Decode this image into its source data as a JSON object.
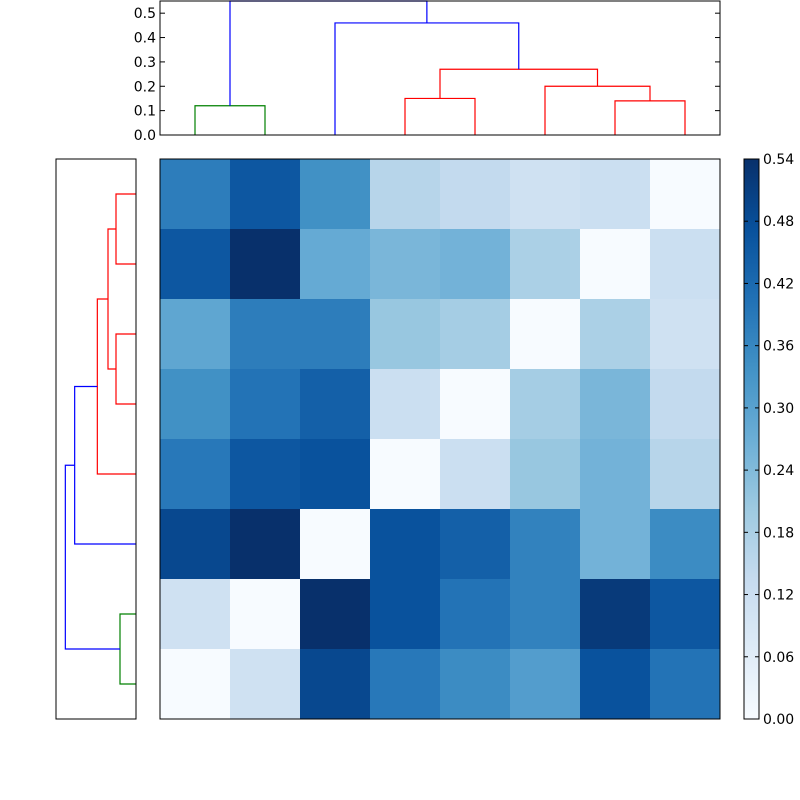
{
  "chart_data": {
    "type": "heatmap",
    "title": "",
    "colormap": "Blues",
    "colors": {
      "low": "#f7fbff",
      "high": "#08306b",
      "cluster_green": "#008000",
      "cluster_red": "#ff0000",
      "cluster_blue": "#0000ff"
    },
    "matrix": [
      [
        0.38,
        0.46,
        0.34,
        0.16,
        0.14,
        0.11,
        0.12,
        0.0
      ],
      [
        0.46,
        0.54,
        0.28,
        0.25,
        0.26,
        0.18,
        0.0,
        0.12
      ],
      [
        0.29,
        0.38,
        0.38,
        0.21,
        0.19,
        0.0,
        0.18,
        0.11
      ],
      [
        0.34,
        0.4,
        0.44,
        0.12,
        0.0,
        0.19,
        0.25,
        0.14
      ],
      [
        0.39,
        0.46,
        0.47,
        0.0,
        0.12,
        0.21,
        0.26,
        0.16
      ],
      [
        0.49,
        0.54,
        0.0,
        0.47,
        0.44,
        0.37,
        0.26,
        0.35
      ],
      [
        0.11,
        0.0,
        0.54,
        0.47,
        0.4,
        0.37,
        0.52,
        0.46
      ],
      [
        0.0,
        0.11,
        0.49,
        0.39,
        0.35,
        0.31,
        0.47,
        0.4
      ]
    ],
    "colorbar": {
      "vmin": 0.0,
      "vmax": 0.54,
      "ticks": [
        "0.00",
        "0.06",
        "0.12",
        "0.18",
        "0.24",
        "0.30",
        "0.36",
        "0.42",
        "0.48",
        "0.54"
      ]
    },
    "top_dendrogram": {
      "ylim": [
        0,
        0.55
      ],
      "ticks": [
        "0.0",
        "0.1",
        "0.2",
        "0.3",
        "0.4",
        "0.5"
      ],
      "links": [
        {
          "left": 0.5,
          "right": 1.5,
          "lh": 0,
          "rh": 0,
          "height": 0.12,
          "color": "green"
        },
        {
          "left": 3.5,
          "right": 4.5,
          "lh": 0,
          "rh": 0,
          "height": 0.15,
          "color": "red"
        },
        {
          "left": 6.5,
          "right": 7.5,
          "lh": 0,
          "rh": 0,
          "height": 0.14,
          "color": "red"
        },
        {
          "left": 5.5,
          "right": 7.0,
          "lh": 0,
          "rh": 0.14,
          "height": 0.2,
          "color": "red"
        },
        {
          "left": 4.0,
          "right": 6.25,
          "lh": 0.15,
          "rh": 0.2,
          "height": 0.27,
          "color": "red"
        },
        {
          "left": 2.5,
          "right": 5.125,
          "lh": 0,
          "rh": 0.27,
          "height": 0.46,
          "color": "blue"
        },
        {
          "left": 1.0,
          "right": 3.8125,
          "lh": 0.12,
          "rh": 0.46,
          "height": 0.55,
          "color": "blue"
        }
      ]
    },
    "left_dendrogram": {
      "xlim": [
        0.6,
        0
      ],
      "links": [
        {
          "left": 0.5,
          "right": 1.5,
          "lh": 0,
          "rh": 0,
          "height": 0.15,
          "color": "red"
        },
        {
          "left": 2.5,
          "right": 3.5,
          "lh": 0,
          "rh": 0,
          "height": 0.15,
          "color": "red"
        },
        {
          "left": 1.0,
          "right": 3.0,
          "lh": 0.15,
          "rh": 0.15,
          "height": 0.21,
          "color": "red"
        },
        {
          "left": 2.0,
          "right": 4.5,
          "lh": 0.21,
          "rh": 0,
          "height": 0.29,
          "color": "red"
        },
        {
          "left": 3.25,
          "right": 5.5,
          "lh": 0.29,
          "rh": 0,
          "height": 0.46,
          "color": "blue"
        },
        {
          "left": 6.5,
          "right": 7.5,
          "lh": 0,
          "rh": 0,
          "height": 0.12,
          "color": "green"
        },
        {
          "left": 4.375,
          "right": 7.0,
          "lh": 0.46,
          "rh": 0.12,
          "height": 0.53,
          "color": "blue"
        }
      ]
    }
  }
}
